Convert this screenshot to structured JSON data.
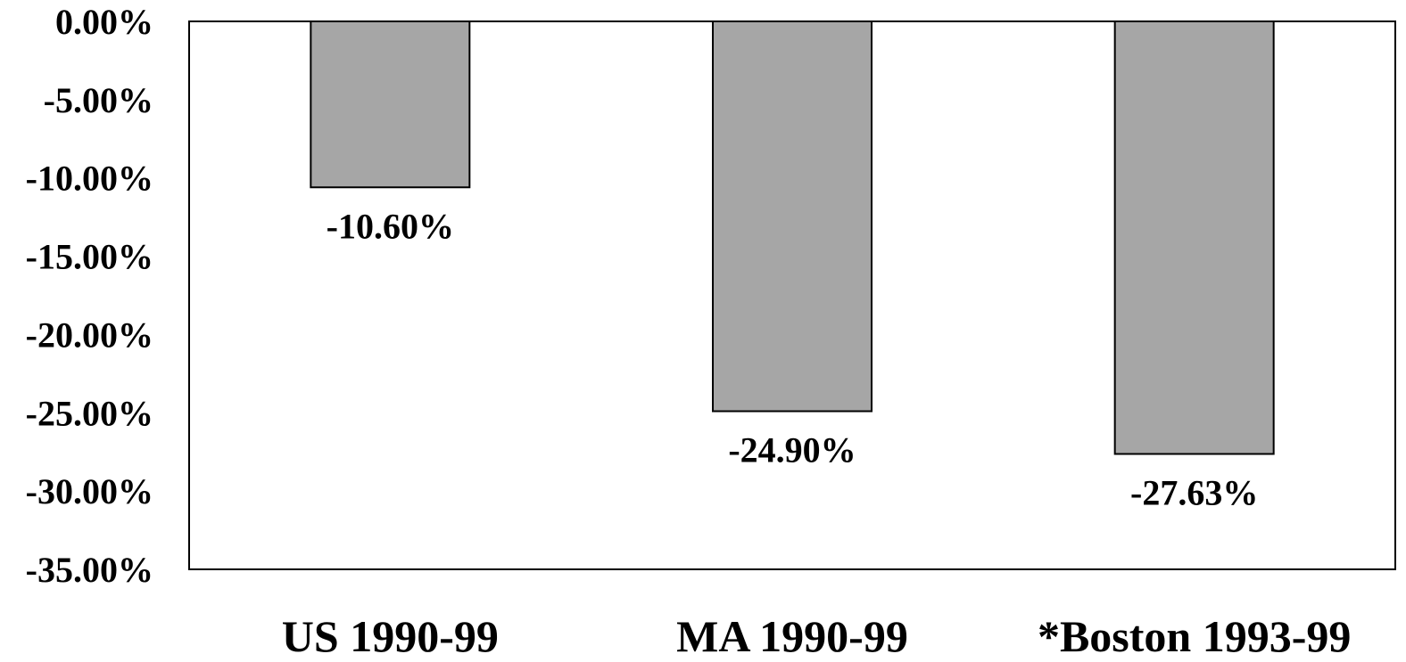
{
  "chart_data": {
    "type": "bar",
    "title": "",
    "xlabel": "",
    "ylabel": "",
    "categories": [
      "US 1990-99",
      "MA 1990-99",
      "*Boston 1993-99"
    ],
    "values": [
      -10.6,
      -24.9,
      -27.63
    ],
    "data_labels": [
      "-10.60%",
      "-24.90%",
      "-27.63%"
    ],
    "ylim": [
      -35,
      0
    ],
    "yticks": [
      0,
      -5,
      -10,
      -15,
      -20,
      -25,
      -30,
      -35
    ],
    "ytick_labels": [
      "0.00%",
      "-5.00%",
      "-10.00%",
      "-15.00%",
      "-20.00%",
      "-25.00%",
      "-30.00%",
      "-35.00%"
    ],
    "grid": false,
    "legend": "none",
    "colors": {
      "bar_fill": "#a6a6a6",
      "bar_stroke": "#000000",
      "plot_border": "#000000",
      "background": "#ffffff"
    }
  }
}
